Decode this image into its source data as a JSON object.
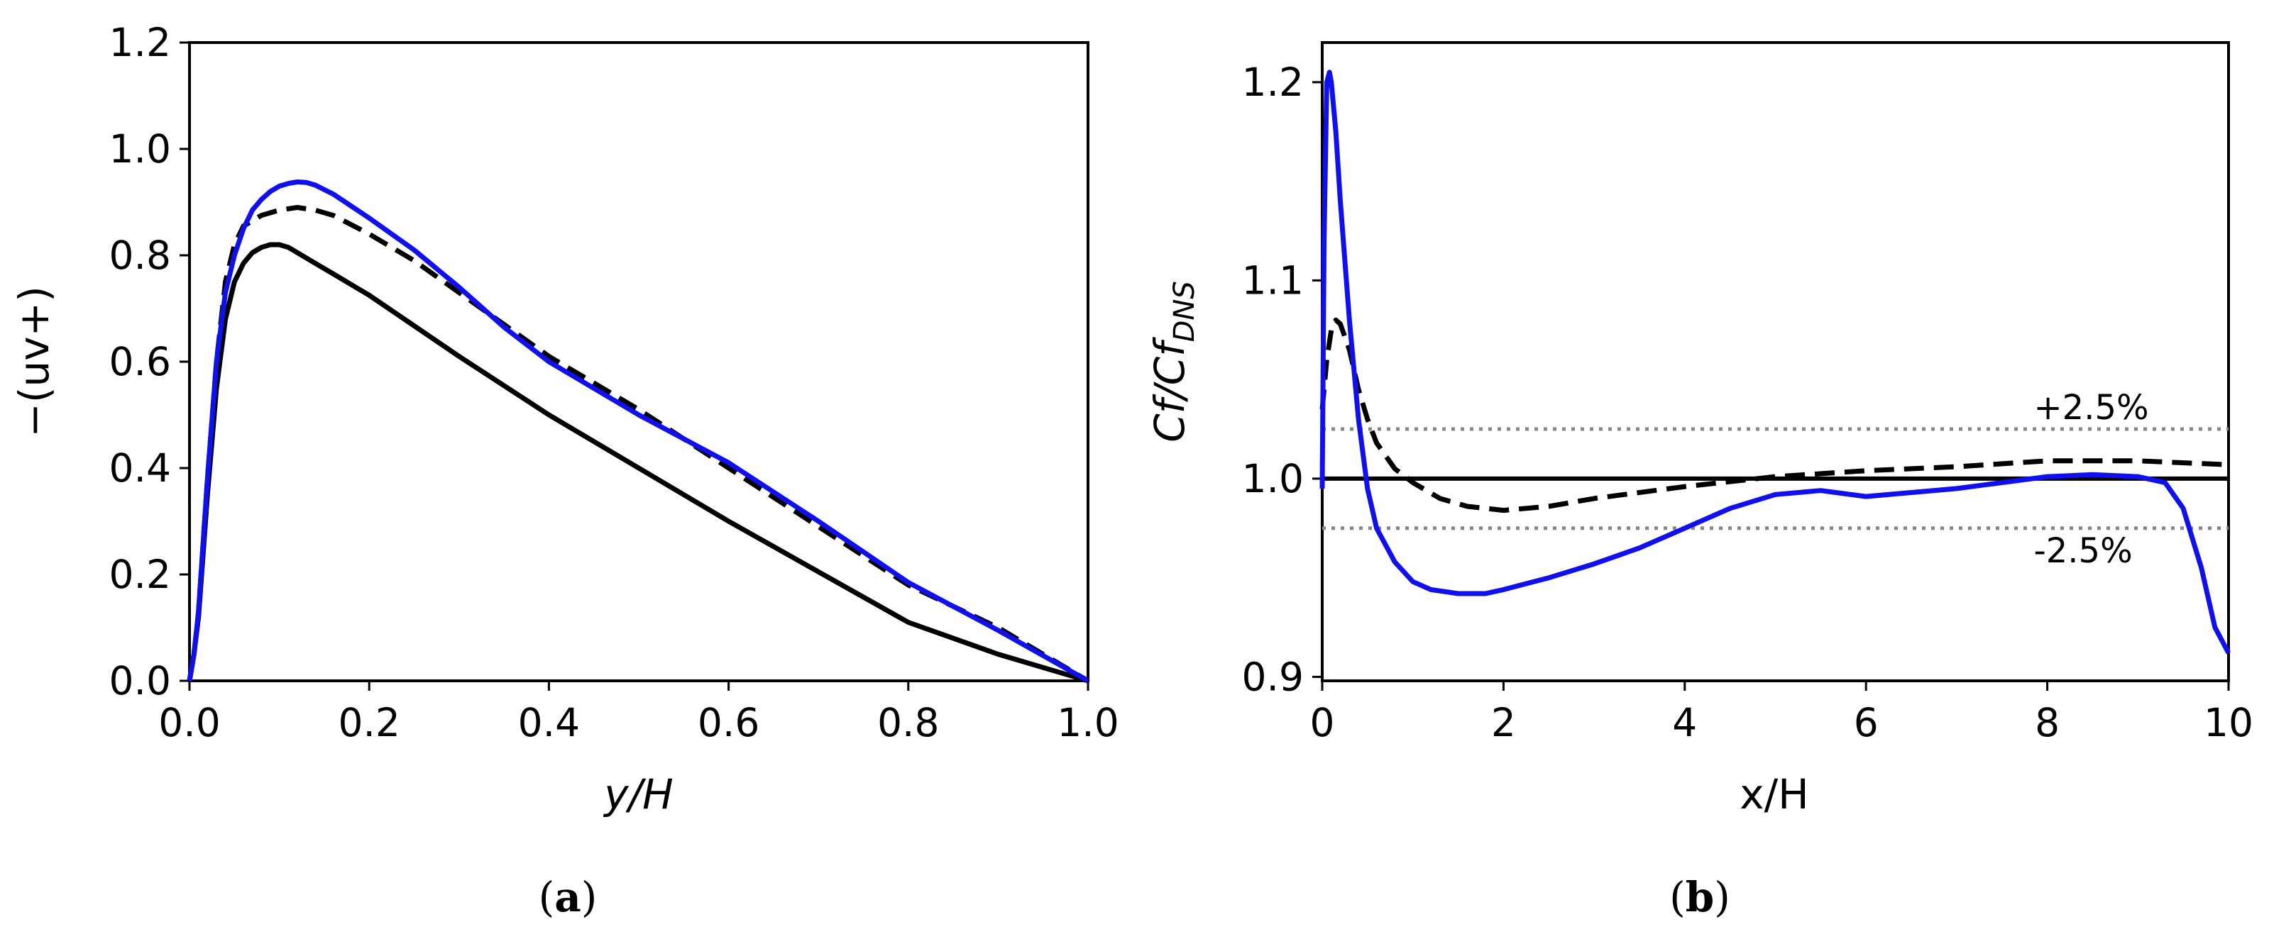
{
  "chart_data": [
    {
      "panel": "a",
      "caption": {
        "open": "(",
        "letter": "a",
        "close": ")"
      },
      "type": "line",
      "xlabel": {
        "main": "y/H"
      },
      "ylabel": {
        "main": "−(uv+)"
      },
      "xlim": [
        0.0,
        1.0
      ],
      "ylim": [
        0.0,
        1.2
      ],
      "xticks": [
        0.0,
        0.2,
        0.4,
        0.6,
        0.8,
        1.0
      ],
      "yticks": [
        0.0,
        0.2,
        0.4,
        0.6,
        0.8,
        1.0,
        1.2
      ],
      "xtick_labels": [
        "0.0",
        "0.2",
        "0.4",
        "0.6",
        "0.8",
        "1.0"
      ],
      "ytick_labels": [
        "0.0",
        "0.2",
        "0.4",
        "0.6",
        "0.8",
        "1.0",
        "1.2"
      ],
      "series": [
        {
          "name": "solid-black",
          "color": "#000000",
          "style": "solid",
          "x": [
            0.0,
            0.005,
            0.01,
            0.02,
            0.03,
            0.04,
            0.05,
            0.06,
            0.07,
            0.08,
            0.09,
            0.1,
            0.11,
            0.12,
            0.14,
            0.16,
            0.2,
            0.3,
            0.4,
            0.5,
            0.6,
            0.7,
            0.8,
            0.9,
            1.0
          ],
          "y": [
            0.0,
            0.05,
            0.12,
            0.35,
            0.55,
            0.68,
            0.75,
            0.785,
            0.805,
            0.815,
            0.82,
            0.82,
            0.815,
            0.805,
            0.785,
            0.765,
            0.725,
            0.61,
            0.5,
            0.4,
            0.3,
            0.205,
            0.11,
            0.05,
            0.0
          ]
        },
        {
          "name": "dashed-black",
          "color": "#000000",
          "style": "dashed",
          "x": [
            0.0,
            0.005,
            0.01,
            0.02,
            0.03,
            0.04,
            0.05,
            0.06,
            0.08,
            0.1,
            0.12,
            0.14,
            0.16,
            0.2,
            0.25,
            0.3,
            0.35,
            0.4,
            0.5,
            0.6,
            0.7,
            0.8,
            0.9,
            1.0
          ],
          "y": [
            0.0,
            0.05,
            0.13,
            0.38,
            0.6,
            0.75,
            0.82,
            0.855,
            0.875,
            0.885,
            0.89,
            0.885,
            0.875,
            0.84,
            0.79,
            0.73,
            0.67,
            0.61,
            0.51,
            0.4,
            0.29,
            0.18,
            0.1,
            0.0
          ]
        },
        {
          "name": "blue",
          "color": "#1010ee",
          "style": "solid",
          "x": [
            0.0,
            0.005,
            0.01,
            0.02,
            0.03,
            0.04,
            0.05,
            0.06,
            0.07,
            0.08,
            0.09,
            0.1,
            0.11,
            0.12,
            0.13,
            0.14,
            0.16,
            0.2,
            0.25,
            0.3,
            0.35,
            0.4,
            0.5,
            0.6,
            0.7,
            0.8,
            0.9,
            1.0
          ],
          "y": [
            0.0,
            0.05,
            0.13,
            0.38,
            0.6,
            0.73,
            0.8,
            0.85,
            0.885,
            0.905,
            0.92,
            0.93,
            0.935,
            0.938,
            0.937,
            0.932,
            0.915,
            0.87,
            0.81,
            0.74,
            0.665,
            0.6,
            0.5,
            0.41,
            0.3,
            0.185,
            0.095,
            0.0
          ]
        }
      ]
    },
    {
      "panel": "b",
      "caption": {
        "open": "(",
        "letter": "b",
        "close": ")"
      },
      "type": "line",
      "xlabel": {
        "main": "x/H"
      },
      "ylabel": {
        "main": "Cf/Cf",
        "sub": "DNS"
      },
      "xlim": [
        0,
        10
      ],
      "ylim": [
        0.898,
        1.22
      ],
      "xticks": [
        0,
        2,
        4,
        6,
        8,
        10
      ],
      "yticks": [
        0.9,
        1.0,
        1.1,
        1.2
      ],
      "xtick_labels": [
        "0",
        "2",
        "4",
        "6",
        "8",
        "10"
      ],
      "ytick_labels": [
        "0.9",
        "1.0",
        "1.1",
        "1.2"
      ],
      "reference_lines": [
        {
          "name": "plus-band",
          "y": 1.025,
          "label": "+2.5%",
          "color": "#888888",
          "style": "dotted"
        },
        {
          "name": "minus-band",
          "y": 0.975,
          "label": "-2.5%",
          "color": "#888888",
          "style": "dotted"
        },
        {
          "name": "unity",
          "y": 1.0,
          "color": "#000000",
          "style": "solid"
        }
      ],
      "series": [
        {
          "name": "dashed-black",
          "color": "#000000",
          "style": "dashed",
          "x": [
            0.0,
            0.05,
            0.1,
            0.15,
            0.2,
            0.3,
            0.4,
            0.5,
            0.6,
            0.8,
            1.0,
            1.3,
            1.6,
            2.0,
            2.5,
            3.0,
            4.0,
            5.0,
            6.0,
            7.0,
            8.0,
            9.0,
            10.0
          ],
          "y": [
            1.035,
            1.06,
            1.075,
            1.08,
            1.078,
            1.065,
            1.045,
            1.03,
            1.018,
            1.005,
            0.998,
            0.99,
            0.986,
            0.984,
            0.986,
            0.99,
            0.996,
            1.001,
            1.004,
            1.006,
            1.009,
            1.009,
            1.007
          ]
        },
        {
          "name": "blue",
          "color": "#1010ee",
          "style": "solid",
          "x": [
            0.0,
            0.02,
            0.05,
            0.08,
            0.1,
            0.15,
            0.2,
            0.3,
            0.4,
            0.5,
            0.6,
            0.8,
            1.0,
            1.2,
            1.5,
            1.8,
            2.0,
            2.5,
            3.0,
            3.5,
            4.0,
            4.5,
            5.0,
            5.5,
            6.0,
            6.5,
            7.0,
            7.5,
            8.0,
            8.5,
            9.0,
            9.3,
            9.5,
            9.7,
            9.85,
            10.0
          ],
          "y": [
            0.995,
            1.12,
            1.2,
            1.205,
            1.2,
            1.175,
            1.14,
            1.08,
            1.03,
            0.995,
            0.975,
            0.958,
            0.948,
            0.944,
            0.942,
            0.942,
            0.944,
            0.95,
            0.957,
            0.965,
            0.975,
            0.985,
            0.992,
            0.994,
            0.991,
            0.993,
            0.995,
            0.998,
            1.001,
            1.002,
            1.001,
            0.998,
            0.985,
            0.955,
            0.925,
            0.912
          ]
        }
      ]
    }
  ]
}
